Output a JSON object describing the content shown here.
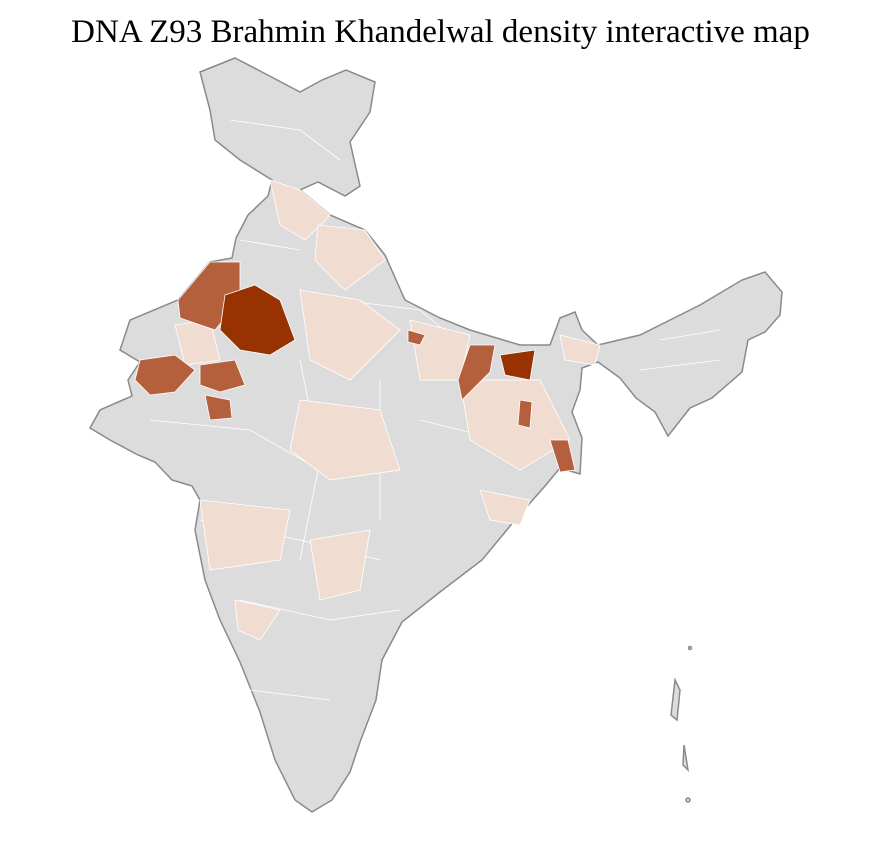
{
  "title": "DNA Z93 Brahmin Khandelwal density interactive map"
}
